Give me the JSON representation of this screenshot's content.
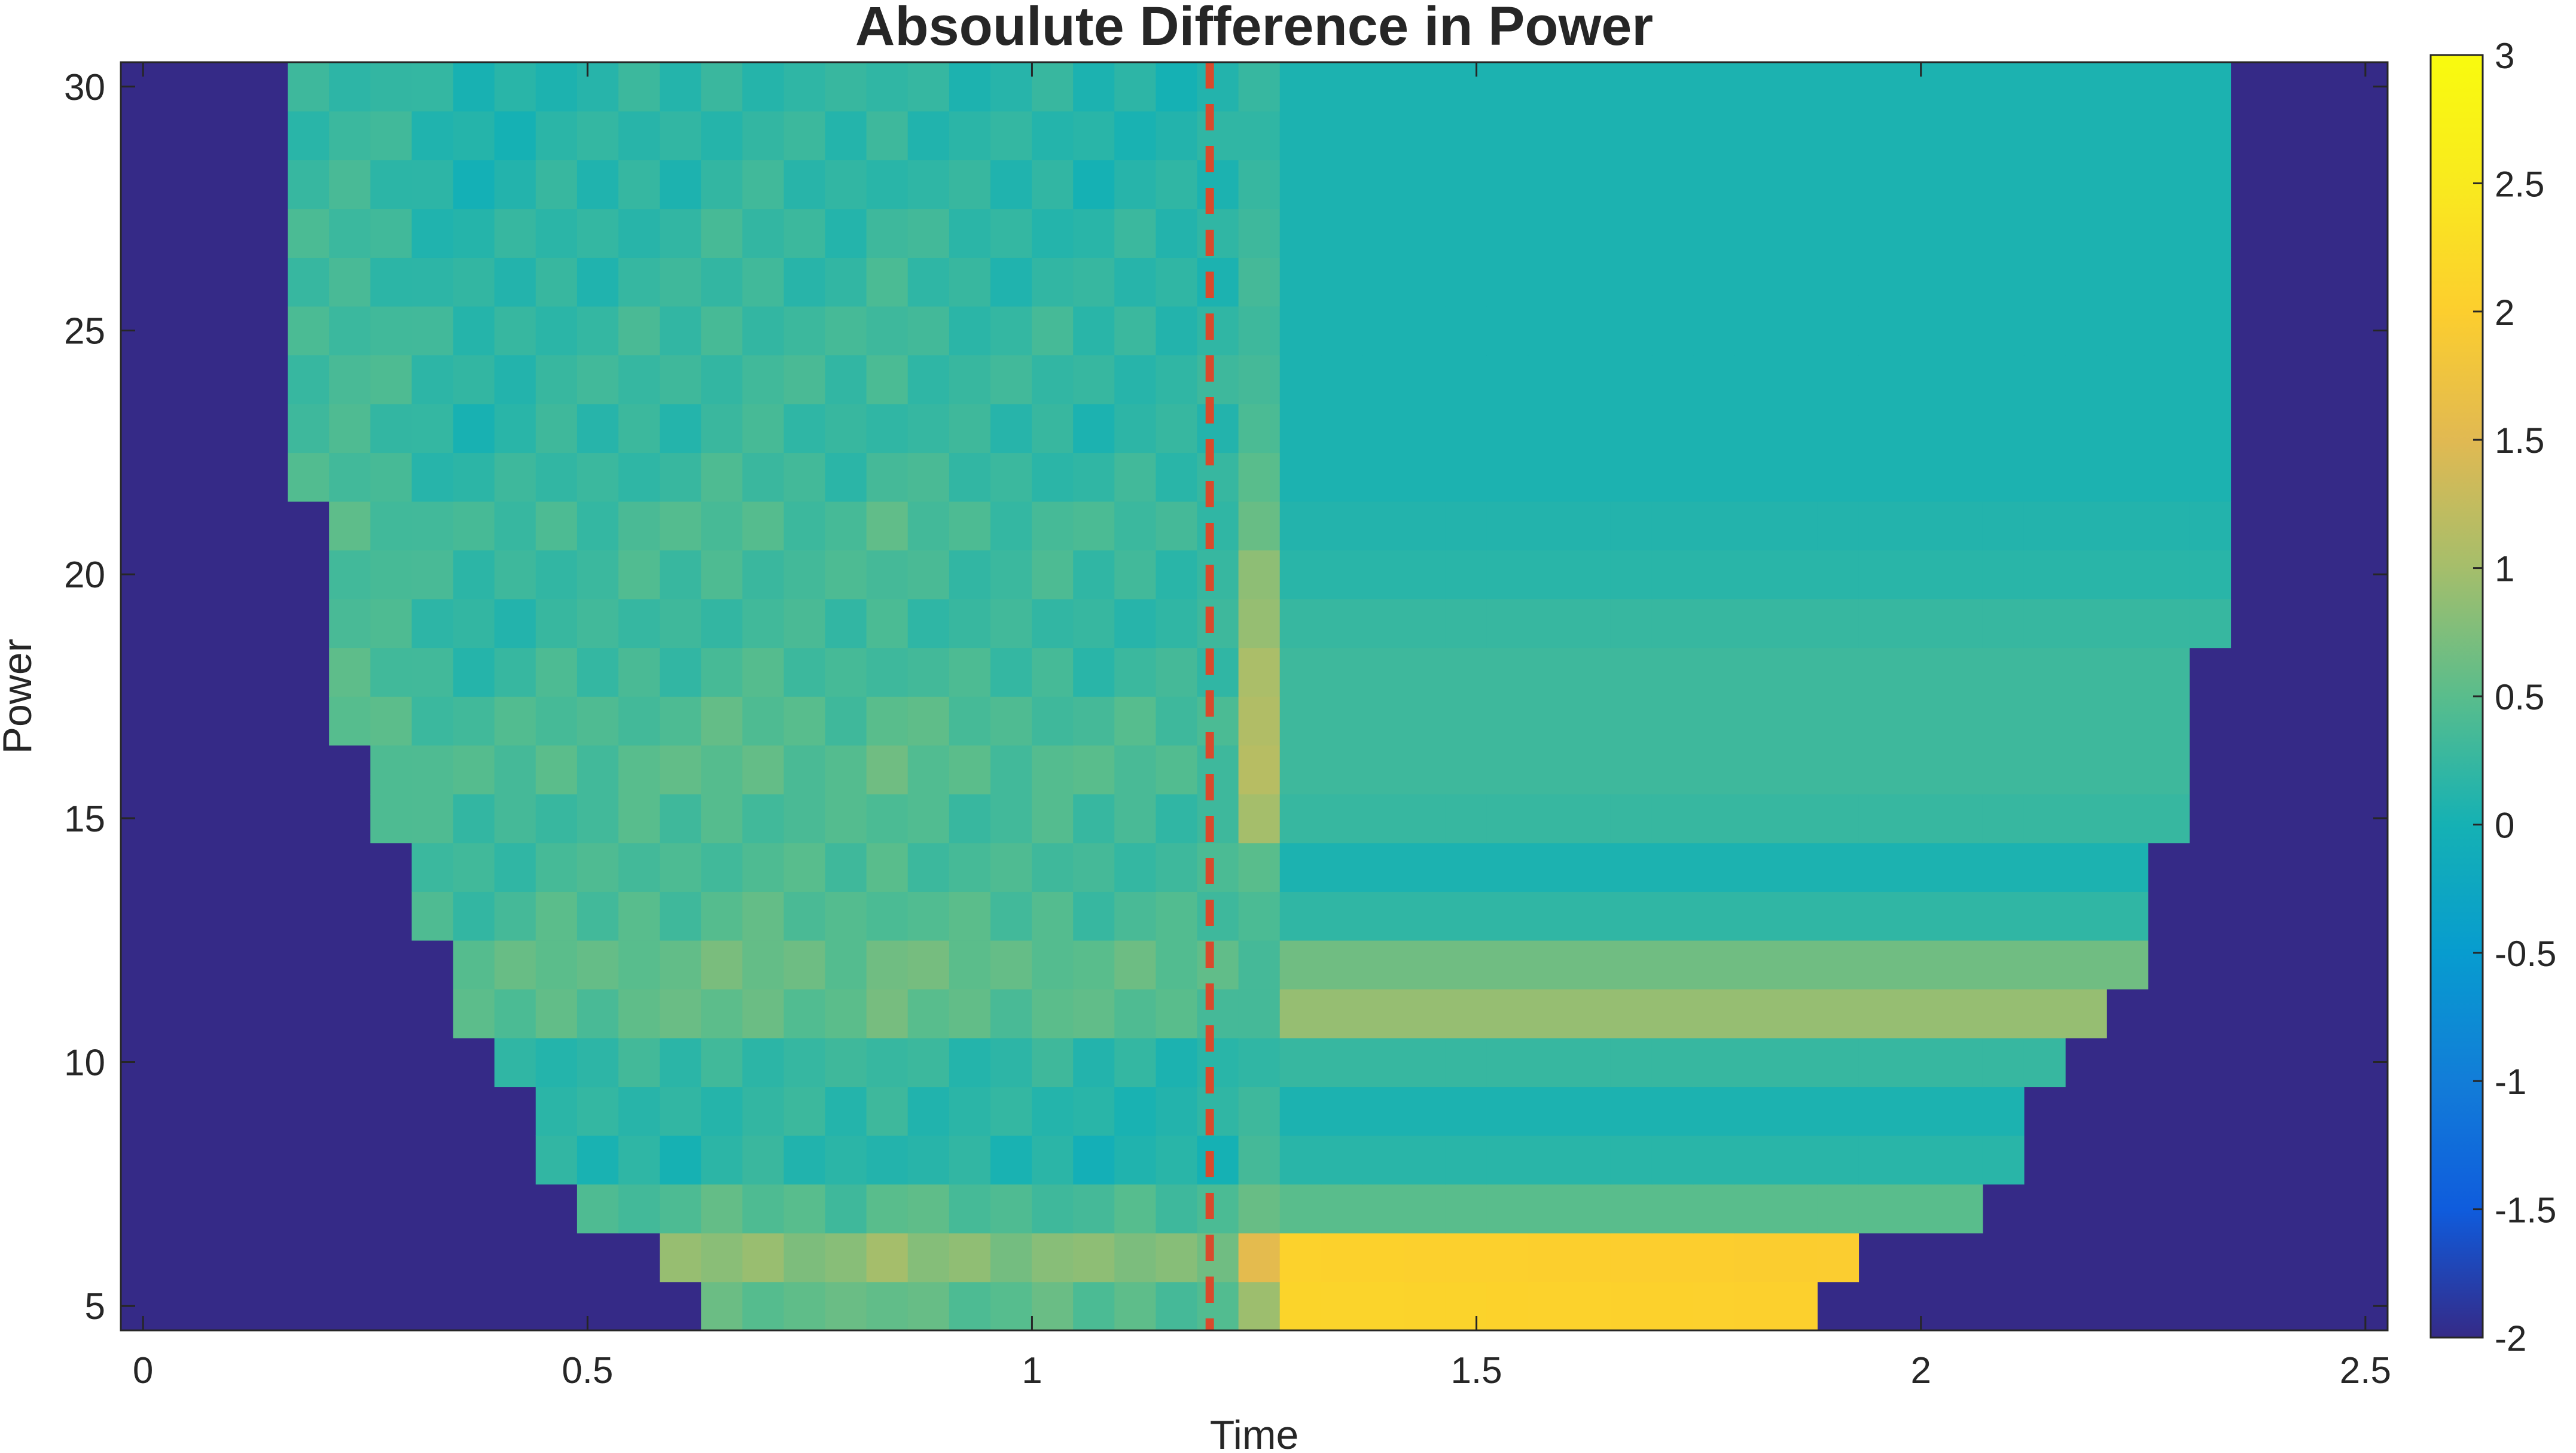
{
  "chart_data": {
    "type": "heatmap",
    "title": "Absoulute Difference in Power",
    "xlabel": "Time",
    "ylabel": "Power",
    "xlim": [
      -0.025,
      2.525
    ],
    "ylim": [
      4.5,
      30.5
    ],
    "xticks": [
      0,
      0.5,
      1,
      1.5,
      2,
      2.5
    ],
    "xtick_labels": [
      "0",
      "0.5",
      "1",
      "1.5",
      "2",
      "2.5"
    ],
    "yticks": [
      5,
      10,
      15,
      20,
      25,
      30
    ],
    "ytick_labels": [
      "5",
      "10",
      "15",
      "20",
      "25",
      "30"
    ],
    "colorbar": {
      "min": -2,
      "max": 3,
      "ticks": [
        3,
        2.5,
        2,
        1.5,
        1,
        0.5,
        0,
        -0.5,
        -1,
        -1.5,
        -2
      ],
      "tick_labels": [
        "3",
        "2.5",
        "2",
        "1.5",
        "1",
        "0.5",
        "0",
        "-0.5",
        "-1",
        "-1.5",
        "-2"
      ],
      "colormap": "parula"
    },
    "masked_value": -2,
    "event_line": {
      "x": 1.2,
      "color": "#d94a2c",
      "style": "dashed"
    },
    "grid": false,
    "x_start": 0,
    "x_step": 0.0465,
    "x_count": 55,
    "y_values": [
      5,
      6,
      7,
      8,
      9,
      10,
      11,
      12,
      13,
      14,
      15,
      16,
      17,
      18,
      19,
      20,
      21,
      22,
      23,
      24,
      25,
      26,
      27,
      28,
      29,
      30
    ],
    "valid_x_ranges": [
      [
        0.65,
        1.9
      ],
      [
        0.6,
        1.95
      ],
      [
        0.5,
        2.05
      ],
      [
        0.45,
        2.1
      ],
      [
        0.45,
        2.1
      ],
      [
        0.4,
        2.15
      ],
      [
        0.35,
        2.2
      ],
      [
        0.35,
        2.25
      ],
      [
        0.3,
        2.25
      ],
      [
        0.3,
        2.25
      ],
      [
        0.25,
        2.3
      ],
      [
        0.25,
        2.3
      ],
      [
        0.2,
        2.3
      ],
      [
        0.2,
        2.3
      ],
      [
        0.2,
        2.35
      ],
      [
        0.2,
        2.35
      ],
      [
        0.2,
        2.35
      ],
      [
        0.15,
        2.35
      ],
      [
        0.15,
        2.35
      ],
      [
        0.15,
        2.35
      ],
      [
        0.15,
        2.35
      ],
      [
        0.15,
        2.35
      ],
      [
        0.15,
        2.35
      ],
      [
        0.15,
        2.35
      ],
      [
        0.15,
        2.35
      ],
      [
        0.15,
        2.35
      ]
    ],
    "column_offsets": [
      0.55,
      0.5,
      0.4,
      0.3,
      0.25,
      0.3,
      0.2,
      0.05,
      -0.05,
      0.0,
      0.1,
      0.05,
      0.15,
      0.1,
      0.2,
      0.2,
      0.15,
      0.1,
      0.25,
      0.15,
      0.1,
      0.05,
      0.1,
      0.0,
      0.05,
      0.0,
      0.0,
      0.05,
      -0.05,
      0.0,
      0.0,
      0.0,
      0.0,
      0.0,
      0.0,
      0.0,
      0.0,
      0.0,
      0.0,
      0.0,
      0.0,
      0.0,
      0.0,
      0.0,
      0.0,
      0.0,
      0.0,
      0.0,
      0.0,
      0.0,
      0.0,
      0.0,
      0.0,
      0.0,
      0.0
    ],
    "row_levels_left": [
      0.45,
      0.75,
      0.35,
      0.05,
      0.1,
      0.15,
      0.45,
      0.5,
      0.35,
      0.3,
      0.3,
      0.4,
      0.35,
      0.25,
      0.2,
      0.25,
      0.3,
      0.2,
      0.15,
      0.2,
      0.2,
      0.15,
      0.15,
      0.1,
      0.1,
      0.1
    ],
    "row_levels_right": [
      2.1,
      2.05,
      0.5,
      0.15,
      0.05,
      0.25,
      0.9,
      0.65,
      0.2,
      0.05,
      0.25,
      0.3,
      0.3,
      0.3,
      0.25,
      0.15,
      0.1,
      0.05,
      0.05,
      0.05,
      0.05,
      0.05,
      0.05,
      0.05,
      0.05,
      0.05
    ],
    "event_column_boost": [
      0.95,
      1.55,
      0.6,
      0.35,
      0.3,
      0.2,
      0.35,
      0.35,
      0.4,
      0.5,
      1.0,
      1.15,
      1.1,
      1.05,
      0.9,
      0.85,
      0.6,
      0.5,
      0.4,
      0.35,
      0.3,
      0.35,
      0.3,
      0.25,
      0.2,
      0.25
    ],
    "event_x_range": [
      1.24,
      1.29
    ]
  }
}
